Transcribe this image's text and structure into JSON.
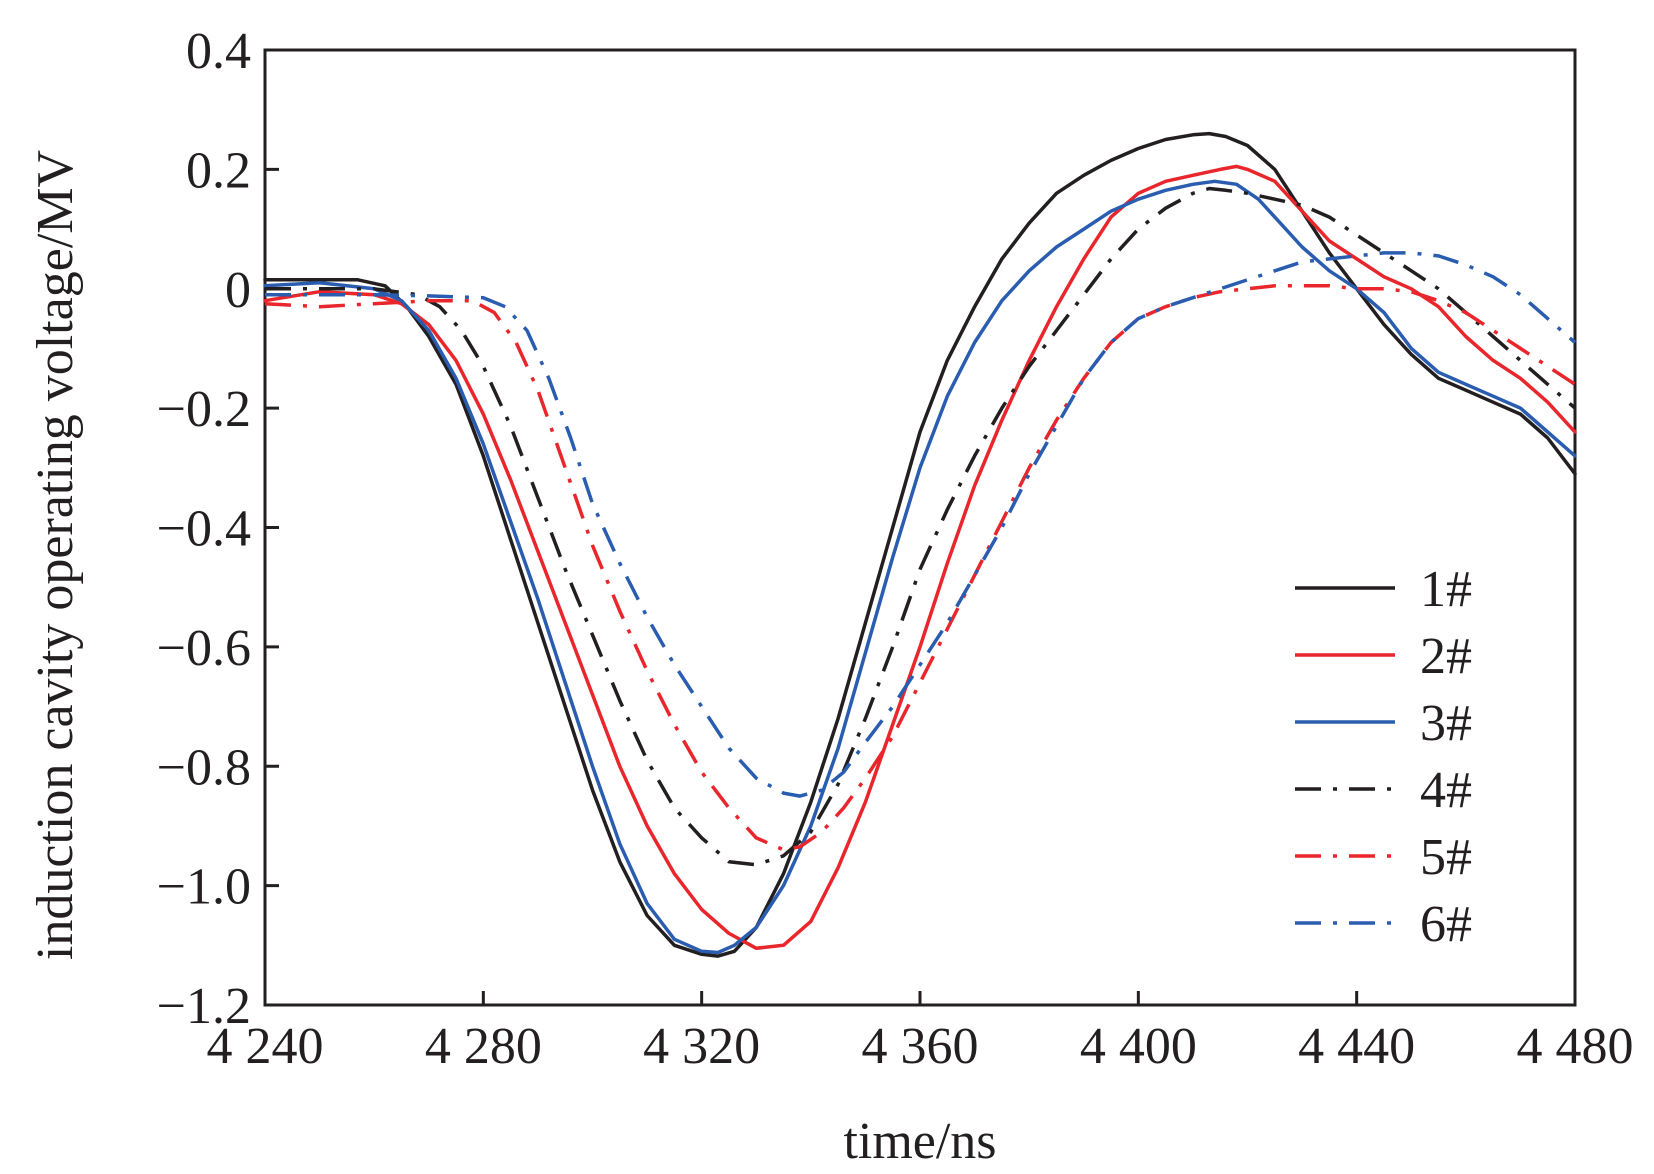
{
  "chart_data": {
    "type": "line",
    "title": "",
    "xlabel": "time/ns",
    "ylabel": "induction cavity operating voltage/MV",
    "xlim": [
      4240,
      4480
    ],
    "ylim": [
      -1.2,
      0.4
    ],
    "x_ticks": [
      4240,
      4280,
      4320,
      4360,
      4400,
      4440,
      4480
    ],
    "x_tick_labels": [
      "4 240",
      "4 280",
      "4 320",
      "4 360",
      "4 400",
      "4 440",
      "4 480"
    ],
    "y_ticks": [
      0.4,
      0.2,
      0,
      -0.2,
      -0.4,
      -0.6,
      -0.8,
      -1.0,
      -1.2
    ],
    "y_tick_labels": [
      "0.4",
      "0.2",
      "0",
      "−0.2",
      "−0.4",
      "−0.6",
      "−0.8",
      "−1.0",
      "−1.2"
    ],
    "grid": false,
    "legend_position": "bottom-right",
    "series": [
      {
        "name": "1#",
        "color": "#231f20",
        "dash": "solid",
        "x": [
          4240,
          4250,
          4257,
          4262,
          4266,
          4270,
          4275,
          4280,
          4285,
          4290,
          4295,
          4300,
          4305,
          4310,
          4315,
          4320,
          4323,
          4326,
          4330,
          4335,
          4340,
          4345,
          4350,
          4355,
          4360,
          4365,
          4370,
          4375,
          4380,
          4385,
          4390,
          4395,
          4400,
          4405,
          4410,
          4413,
          4416,
          4420,
          4425,
          4430,
          4435,
          4440,
          4445,
          4450,
          4455,
          4460,
          4465,
          4470,
          4475,
          4480
        ],
        "y": [
          0.015,
          0.015,
          0.015,
          0.005,
          -0.03,
          -0.08,
          -0.16,
          -0.28,
          -0.42,
          -0.56,
          -0.7,
          -0.84,
          -0.96,
          -1.05,
          -1.1,
          -1.115,
          -1.118,
          -1.11,
          -1.07,
          -0.98,
          -0.86,
          -0.72,
          -0.56,
          -0.4,
          -0.24,
          -0.12,
          -0.03,
          0.05,
          0.11,
          0.16,
          0.19,
          0.215,
          0.235,
          0.25,
          0.258,
          0.26,
          0.255,
          0.24,
          0.2,
          0.13,
          0.06,
          0.0,
          -0.06,
          -0.11,
          -0.15,
          -0.17,
          -0.19,
          -0.21,
          -0.25,
          -0.31
        ]
      },
      {
        "name": "2#",
        "color": "#e8262b",
        "dash": "solid",
        "x": [
          4240,
          4250,
          4260,
          4265,
          4270,
          4275,
          4280,
          4285,
          4290,
          4295,
          4300,
          4305,
          4310,
          4315,
          4320,
          4325,
          4330,
          4335,
          4340,
          4345,
          4350,
          4355,
          4360,
          4365,
          4370,
          4375,
          4380,
          4385,
          4390,
          4395,
          4400,
          4405,
          4410,
          4415,
          4418,
          4420,
          4425,
          4430,
          4435,
          4440,
          4445,
          4450,
          4455,
          4460,
          4465,
          4470,
          4475,
          4480
        ],
        "y": [
          -0.02,
          -0.005,
          -0.01,
          -0.025,
          -0.06,
          -0.12,
          -0.21,
          -0.32,
          -0.44,
          -0.56,
          -0.68,
          -0.8,
          -0.9,
          -0.98,
          -1.04,
          -1.08,
          -1.105,
          -1.1,
          -1.06,
          -0.97,
          -0.86,
          -0.73,
          -0.6,
          -0.46,
          -0.33,
          -0.22,
          -0.12,
          -0.03,
          0.05,
          0.12,
          0.16,
          0.18,
          0.19,
          0.2,
          0.205,
          0.2,
          0.18,
          0.13,
          0.08,
          0.05,
          0.02,
          0.0,
          -0.03,
          -0.08,
          -0.12,
          -0.15,
          -0.19,
          -0.24
        ]
      },
      {
        "name": "3#",
        "color": "#2a5db0",
        "dash": "solid",
        "x": [
          4240,
          4250,
          4260,
          4265,
          4270,
          4275,
          4280,
          4285,
          4290,
          4295,
          4300,
          4305,
          4310,
          4315,
          4320,
          4323,
          4326,
          4330,
          4335,
          4340,
          4345,
          4350,
          4355,
          4360,
          4365,
          4370,
          4375,
          4380,
          4385,
          4390,
          4395,
          4400,
          4405,
          4410,
          4414,
          4418,
          4422,
          4425,
          4430,
          4435,
          4440,
          4445,
          4450,
          4455,
          4460,
          4465,
          4470,
          4475,
          4480
        ],
        "y": [
          0.005,
          0.01,
          0.0,
          -0.02,
          -0.07,
          -0.15,
          -0.26,
          -0.39,
          -0.52,
          -0.66,
          -0.8,
          -0.93,
          -1.03,
          -1.09,
          -1.11,
          -1.112,
          -1.1,
          -1.07,
          -1.0,
          -0.9,
          -0.77,
          -0.61,
          -0.45,
          -0.3,
          -0.18,
          -0.09,
          -0.02,
          0.03,
          0.07,
          0.1,
          0.13,
          0.15,
          0.165,
          0.175,
          0.18,
          0.175,
          0.15,
          0.12,
          0.07,
          0.03,
          0.0,
          -0.04,
          -0.1,
          -0.14,
          -0.16,
          -0.18,
          -0.2,
          -0.24,
          -0.28
        ]
      },
      {
        "name": "4#",
        "color": "#231f20",
        "dash": "dashdot",
        "x": [
          4240,
          4250,
          4260,
          4268,
          4272,
          4276,
          4280,
          4285,
          4290,
          4295,
          4300,
          4305,
          4310,
          4315,
          4320,
          4325,
          4330,
          4335,
          4340,
          4345,
          4350,
          4355,
          4360,
          4365,
          4370,
          4375,
          4380,
          4385,
          4390,
          4395,
          4400,
          4405,
          4410,
          4413,
          4416,
          4420,
          4425,
          4430,
          4435,
          4440,
          4445,
          4450,
          4455,
          4460,
          4465,
          4470,
          4475,
          4480
        ],
        "y": [
          0.0,
          0.0,
          0.0,
          -0.01,
          -0.03,
          -0.07,
          -0.13,
          -0.23,
          -0.35,
          -0.47,
          -0.58,
          -0.69,
          -0.79,
          -0.87,
          -0.92,
          -0.96,
          -0.965,
          -0.95,
          -0.91,
          -0.83,
          -0.72,
          -0.6,
          -0.47,
          -0.37,
          -0.28,
          -0.2,
          -0.13,
          -0.07,
          -0.01,
          0.05,
          0.1,
          0.135,
          0.16,
          0.168,
          0.165,
          0.16,
          0.15,
          0.14,
          0.12,
          0.09,
          0.06,
          0.03,
          0.0,
          -0.04,
          -0.08,
          -0.12,
          -0.16,
          -0.2
        ]
      },
      {
        "name": "5#",
        "color": "#e8262b",
        "dash": "dashdot",
        "x": [
          4240,
          4250,
          4260,
          4270,
          4278,
          4282,
          4286,
          4290,
          4295,
          4300,
          4305,
          4310,
          4315,
          4320,
          4325,
          4330,
          4335,
          4338,
          4342,
          4346,
          4350,
          4355,
          4360,
          4365,
          4370,
          4375,
          4380,
          4385,
          4390,
          4395,
          4400,
          4405,
          4410,
          4415,
          4420,
          4425,
          4430,
          4435,
          4440,
          4445,
          4450,
          4455,
          4460,
          4465,
          4470,
          4475,
          4480
        ],
        "y": [
          -0.025,
          -0.03,
          -0.025,
          -0.02,
          -0.02,
          -0.04,
          -0.09,
          -0.17,
          -0.3,
          -0.43,
          -0.54,
          -0.64,
          -0.73,
          -0.81,
          -0.87,
          -0.92,
          -0.94,
          -0.935,
          -0.91,
          -0.87,
          -0.82,
          -0.75,
          -0.66,
          -0.57,
          -0.48,
          -0.39,
          -0.3,
          -0.22,
          -0.15,
          -0.09,
          -0.05,
          -0.03,
          -0.015,
          -0.005,
          0.0,
          0.005,
          0.005,
          0.005,
          0.0,
          0.0,
          -0.005,
          -0.02,
          -0.04,
          -0.07,
          -0.1,
          -0.13,
          -0.16
        ]
      },
      {
        "name": "6#",
        "color": "#2a5db0",
        "dash": "dashdot",
        "x": [
          4240,
          4250,
          4260,
          4270,
          4280,
          4284,
          4288,
          4292,
          4296,
          4300,
          4305,
          4310,
          4315,
          4320,
          4325,
          4330,
          4335,
          4338,
          4342,
          4346,
          4350,
          4355,
          4360,
          4365,
          4370,
          4375,
          4380,
          4385,
          4390,
          4395,
          4400,
          4405,
          4410,
          4415,
          4420,
          4425,
          4430,
          4435,
          4440,
          4445,
          4450,
          4455,
          4460,
          4465,
          4470,
          4475,
          4480
        ],
        "y": [
          -0.01,
          -0.01,
          -0.01,
          -0.012,
          -0.015,
          -0.03,
          -0.07,
          -0.15,
          -0.25,
          -0.36,
          -0.46,
          -0.55,
          -0.63,
          -0.7,
          -0.77,
          -0.82,
          -0.845,
          -0.85,
          -0.84,
          -0.81,
          -0.76,
          -0.7,
          -0.63,
          -0.56,
          -0.48,
          -0.4,
          -0.31,
          -0.23,
          -0.15,
          -0.09,
          -0.05,
          -0.03,
          -0.015,
          0.0,
          0.015,
          0.03,
          0.045,
          0.05,
          0.055,
          0.06,
          0.06,
          0.055,
          0.04,
          0.02,
          -0.01,
          -0.05,
          -0.09
        ]
      }
    ]
  }
}
